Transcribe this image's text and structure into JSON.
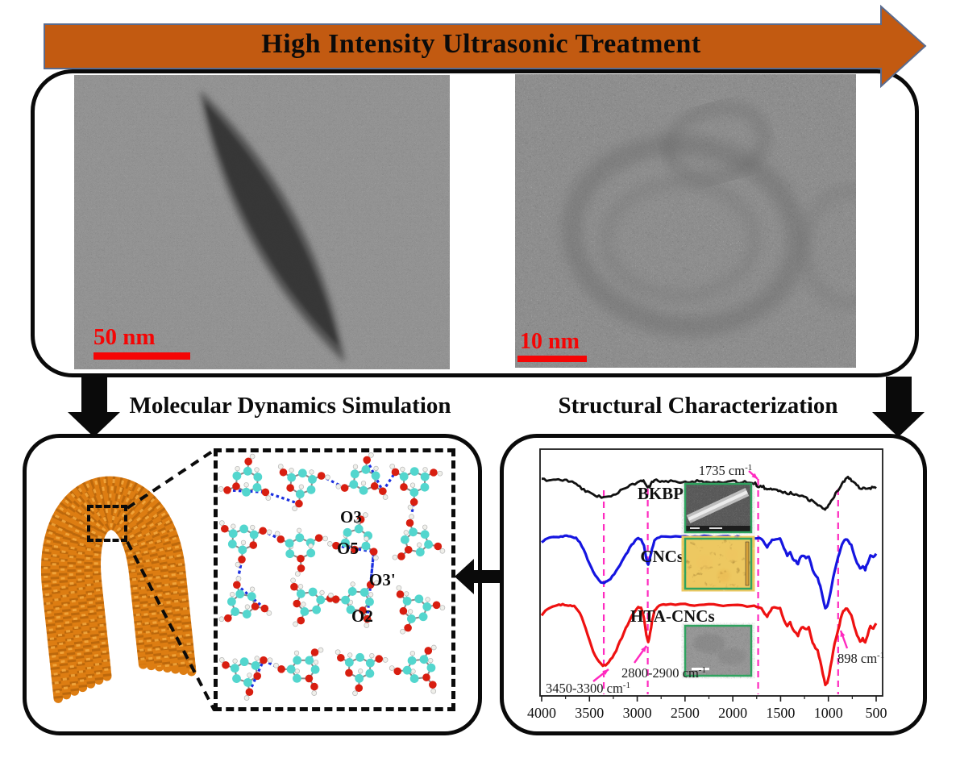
{
  "banner": {
    "label": "High Intensity Ultrasonic Treatment",
    "fill_color": "#C25A11",
    "outline_color": "#5A6B8E"
  },
  "top_panel": {
    "left_tem": {
      "scale_bar": "50 nm",
      "scale_color": "#F50505",
      "description": "tem-of-cnc-spindle"
    },
    "right_tem": {
      "scale_bar": "10 nm",
      "scale_color": "#F50505",
      "description": "hrtem-of-twisted-fibril"
    }
  },
  "mid_labels": {
    "left": "Molecular Dynamics Simulation",
    "right": "Structural Characterization"
  },
  "md_panel": {
    "fibril_color": "#DD7D12",
    "zoom_labels": [
      "O3",
      "O5",
      "O3'",
      "O2"
    ],
    "atom_colors": {
      "carbon": "#53D6CE",
      "oxygen": "#D81E10",
      "hydrogen": "#EFEFEa",
      "hbond": "#1B2FE0"
    }
  },
  "chart_data": {
    "type": "line",
    "title": "",
    "xlabel": "",
    "ylabel": "",
    "x_unit": "cm-1",
    "x_range": [
      4000,
      500
    ],
    "x_axis_reversed": true,
    "x_ticks": [
      4000,
      3500,
      3000,
      2500,
      2000,
      1500,
      1000,
      500
    ],
    "grid": false,
    "reference_lines": {
      "color": "#FF2ABF",
      "values": [
        3350,
        2890,
        1735,
        898
      ]
    },
    "annotations": [
      {
        "label": "1735 cm",
        "sup": "-1",
        "target_wavenumber": 1735
      },
      {
        "label": "3450-3300 cm",
        "sup": "-1",
        "target_wavenumber": 3350
      },
      {
        "label": "2800-2900 cm",
        "sup": "-1",
        "target_wavenumber": 2890
      },
      {
        "label": "898 cm",
        "sup": "-1",
        "target_wavenumber": 898
      }
    ],
    "insets": [
      {
        "for": "BKBP",
        "kind": "sem-fiber"
      },
      {
        "for": "CNCs",
        "kind": "afm-gold"
      },
      {
        "for": "HTA-CNCs",
        "kind": "tem-gray"
      }
    ],
    "label_color": "#111111",
    "series": [
      {
        "name": "BKBP",
        "color": "#111111",
        "points": [
          [
            4000,
            0.06
          ],
          [
            3950,
            0.05
          ],
          [
            3900,
            0.06
          ],
          [
            3850,
            0.05
          ],
          [
            3800,
            0.06
          ],
          [
            3760,
            0.07
          ],
          [
            3720,
            0.09
          ],
          [
            3680,
            0.13
          ],
          [
            3640,
            0.2
          ],
          [
            3600,
            0.28
          ],
          [
            3560,
            0.37
          ],
          [
            3520,
            0.45
          ],
          [
            3480,
            0.52
          ],
          [
            3440,
            0.57
          ],
          [
            3400,
            0.6
          ],
          [
            3350,
            0.61
          ],
          [
            3300,
            0.58
          ],
          [
            3250,
            0.53
          ],
          [
            3200,
            0.46
          ],
          [
            3150,
            0.38
          ],
          [
            3100,
            0.3
          ],
          [
            3050,
            0.22
          ],
          [
            3000,
            0.15
          ],
          [
            2960,
            0.08
          ],
          [
            2935,
            0.05
          ],
          [
            2910,
            0.22
          ],
          [
            2890,
            0.33
          ],
          [
            2868,
            0.25
          ],
          [
            2846,
            0.14
          ],
          [
            2820,
            0.08
          ],
          [
            2780,
            0.08
          ],
          [
            2740,
            0.09
          ],
          [
            2700,
            0.08
          ],
          [
            2650,
            0.1
          ],
          [
            2600,
            0.09
          ],
          [
            2550,
            0.11
          ],
          [
            2500,
            0.1
          ],
          [
            2450,
            0.1
          ],
          [
            2400,
            0.11
          ],
          [
            2350,
            0.1
          ],
          [
            2300,
            0.12
          ],
          [
            2250,
            0.11
          ],
          [
            2200,
            0.12
          ],
          [
            2150,
            0.12
          ],
          [
            2100,
            0.13
          ],
          [
            2050,
            0.12
          ],
          [
            2000,
            0.12
          ],
          [
            1950,
            0.13
          ],
          [
            1900,
            0.13
          ],
          [
            1850,
            0.14
          ],
          [
            1800,
            0.14
          ],
          [
            1765,
            0.16
          ],
          [
            1735,
            0.28
          ],
          [
            1710,
            0.24
          ],
          [
            1680,
            0.28
          ],
          [
            1655,
            0.34
          ],
          [
            1630,
            0.38
          ],
          [
            1605,
            0.36
          ],
          [
            1575,
            0.33
          ],
          [
            1540,
            0.36
          ],
          [
            1508,
            0.4
          ],
          [
            1475,
            0.44
          ],
          [
            1455,
            0.47
          ],
          [
            1425,
            0.5
          ],
          [
            1395,
            0.48
          ],
          [
            1370,
            0.53
          ],
          [
            1340,
            0.55
          ],
          [
            1315,
            0.57
          ],
          [
            1285,
            0.6
          ],
          [
            1255,
            0.63
          ],
          [
            1225,
            0.67
          ],
          [
            1195,
            0.71
          ],
          [
            1160,
            0.77
          ],
          [
            1125,
            0.84
          ],
          [
            1095,
            0.9
          ],
          [
            1060,
            0.96
          ],
          [
            1035,
            1.0
          ],
          [
            1010,
            0.93
          ],
          [
            985,
            0.82
          ],
          [
            955,
            0.68
          ],
          [
            925,
            0.52
          ],
          [
            898,
            0.38
          ],
          [
            870,
            0.24
          ],
          [
            845,
            0.12
          ],
          [
            820,
            0.04
          ],
          [
            795,
            -0.04
          ],
          [
            770,
            0.02
          ],
          [
            745,
            0.1
          ],
          [
            718,
            0.18
          ],
          [
            690,
            0.26
          ],
          [
            662,
            0.34
          ],
          [
            635,
            0.28
          ],
          [
            610,
            0.35
          ],
          [
            585,
            0.3
          ],
          [
            558,
            0.34
          ],
          [
            530,
            0.28
          ],
          [
            500,
            0.32
          ]
        ]
      },
      {
        "name": "CNCs",
        "color": "#1515E0",
        "points": [
          [
            4000,
            0.1
          ],
          [
            3960,
            0.07
          ],
          [
            3920,
            0.05
          ],
          [
            3880,
            0.04
          ],
          [
            3840,
            0.03
          ],
          [
            3800,
            0.02
          ],
          [
            3760,
            0.02
          ],
          [
            3720,
            0.02
          ],
          [
            3680,
            0.03
          ],
          [
            3640,
            0.05
          ],
          [
            3600,
            0.1
          ],
          [
            3560,
            0.2
          ],
          [
            3520,
            0.32
          ],
          [
            3480,
            0.44
          ],
          [
            3440,
            0.54
          ],
          [
            3400,
            0.6
          ],
          [
            3360,
            0.63
          ],
          [
            3330,
            0.62
          ],
          [
            3300,
            0.6
          ],
          [
            3260,
            0.55
          ],
          [
            3220,
            0.48
          ],
          [
            3180,
            0.4
          ],
          [
            3140,
            0.31
          ],
          [
            3100,
            0.22
          ],
          [
            3060,
            0.14
          ],
          [
            3020,
            0.08
          ],
          [
            2990,
            0.05
          ],
          [
            2960,
            0.05
          ],
          [
            2930,
            0.15
          ],
          [
            2905,
            0.32
          ],
          [
            2885,
            0.4
          ],
          [
            2865,
            0.3
          ],
          [
            2845,
            0.18
          ],
          [
            2820,
            0.08
          ],
          [
            2790,
            0.04
          ],
          [
            2750,
            0.02
          ],
          [
            2700,
            0.02
          ],
          [
            2600,
            0.02
          ],
          [
            2500,
            0.02
          ],
          [
            2400,
            0.03
          ],
          [
            2300,
            0.02
          ],
          [
            2200,
            0.03
          ],
          [
            2100,
            0.03
          ],
          [
            2000,
            0.03
          ],
          [
            1900,
            0.03
          ],
          [
            1800,
            0.04
          ],
          [
            1750,
            0.04
          ],
          [
            1700,
            0.06
          ],
          [
            1665,
            0.12
          ],
          [
            1640,
            0.17
          ],
          [
            1615,
            0.11
          ],
          [
            1590,
            0.07
          ],
          [
            1550,
            0.05
          ],
          [
            1505,
            0.06
          ],
          [
            1465,
            0.18
          ],
          [
            1430,
            0.27
          ],
          [
            1400,
            0.22
          ],
          [
            1372,
            0.31
          ],
          [
            1340,
            0.35
          ],
          [
            1318,
            0.38
          ],
          [
            1295,
            0.31
          ],
          [
            1265,
            0.27
          ],
          [
            1235,
            0.31
          ],
          [
            1205,
            0.29
          ],
          [
            1165,
            0.46
          ],
          [
            1135,
            0.52
          ],
          [
            1112,
            0.56
          ],
          [
            1085,
            0.68
          ],
          [
            1058,
            0.82
          ],
          [
            1032,
            0.97
          ],
          [
            1012,
            0.93
          ],
          [
            992,
            0.84
          ],
          [
            965,
            0.66
          ],
          [
            935,
            0.47
          ],
          [
            898,
            0.3
          ],
          [
            872,
            0.18
          ],
          [
            845,
            0.09
          ],
          [
            818,
            0.06
          ],
          [
            790,
            0.08
          ],
          [
            760,
            0.14
          ],
          [
            730,
            0.26
          ],
          [
            700,
            0.37
          ],
          [
            668,
            0.45
          ],
          [
            640,
            0.41
          ],
          [
            615,
            0.46
          ],
          [
            590,
            0.37
          ],
          [
            560,
            0.27
          ],
          [
            530,
            0.3
          ],
          [
            500,
            0.24
          ]
        ]
      },
      {
        "name": "HTA-CNCs",
        "color": "#EE1111",
        "points": [
          [
            4000,
            0.16
          ],
          [
            3960,
            0.1
          ],
          [
            3920,
            0.07
          ],
          [
            3880,
            0.05
          ],
          [
            3840,
            0.04
          ],
          [
            3800,
            0.03
          ],
          [
            3760,
            0.03
          ],
          [
            3720,
            0.03
          ],
          [
            3680,
            0.04
          ],
          [
            3640,
            0.06
          ],
          [
            3600,
            0.12
          ],
          [
            3560,
            0.24
          ],
          [
            3520,
            0.38
          ],
          [
            3480,
            0.52
          ],
          [
            3440,
            0.63
          ],
          [
            3400,
            0.7
          ],
          [
            3360,
            0.74
          ],
          [
            3330,
            0.73
          ],
          [
            3300,
            0.7
          ],
          [
            3260,
            0.64
          ],
          [
            3220,
            0.56
          ],
          [
            3180,
            0.46
          ],
          [
            3140,
            0.36
          ],
          [
            3100,
            0.26
          ],
          [
            3060,
            0.17
          ],
          [
            3020,
            0.1
          ],
          [
            2990,
            0.06
          ],
          [
            2960,
            0.06
          ],
          [
            2930,
            0.18
          ],
          [
            2905,
            0.38
          ],
          [
            2885,
            0.47
          ],
          [
            2865,
            0.36
          ],
          [
            2845,
            0.22
          ],
          [
            2820,
            0.1
          ],
          [
            2790,
            0.05
          ],
          [
            2750,
            0.03
          ],
          [
            2700,
            0.02
          ],
          [
            2600,
            0.03
          ],
          [
            2500,
            0.02
          ],
          [
            2400,
            0.03
          ],
          [
            2300,
            0.03
          ],
          [
            2200,
            0.03
          ],
          [
            2100,
            0.04
          ],
          [
            2000,
            0.03
          ],
          [
            1900,
            0.04
          ],
          [
            1800,
            0.04
          ],
          [
            1750,
            0.05
          ],
          [
            1700,
            0.07
          ],
          [
            1665,
            0.13
          ],
          [
            1640,
            0.16
          ],
          [
            1615,
            0.11
          ],
          [
            1590,
            0.07
          ],
          [
            1550,
            0.06
          ],
          [
            1505,
            0.07
          ],
          [
            1465,
            0.2
          ],
          [
            1430,
            0.28
          ],
          [
            1400,
            0.23
          ],
          [
            1372,
            0.32
          ],
          [
            1340,
            0.36
          ],
          [
            1318,
            0.39
          ],
          [
            1295,
            0.32
          ],
          [
            1265,
            0.28
          ],
          [
            1235,
            0.32
          ],
          [
            1205,
            0.3
          ],
          [
            1165,
            0.47
          ],
          [
            1135,
            0.53
          ],
          [
            1112,
            0.57
          ],
          [
            1085,
            0.69
          ],
          [
            1058,
            0.83
          ],
          [
            1032,
            0.97
          ],
          [
            1012,
            0.94
          ],
          [
            992,
            0.85
          ],
          [
            965,
            0.67
          ],
          [
            935,
            0.48
          ],
          [
            898,
            0.33
          ],
          [
            872,
            0.2
          ],
          [
            845,
            0.1
          ],
          [
            818,
            0.07
          ],
          [
            790,
            0.09
          ],
          [
            760,
            0.15
          ],
          [
            730,
            0.27
          ],
          [
            700,
            0.38
          ],
          [
            668,
            0.46
          ],
          [
            640,
            0.42
          ],
          [
            615,
            0.47
          ],
          [
            590,
            0.38
          ],
          [
            560,
            0.28
          ],
          [
            530,
            0.31
          ],
          [
            500,
            0.25
          ]
        ]
      }
    ]
  }
}
